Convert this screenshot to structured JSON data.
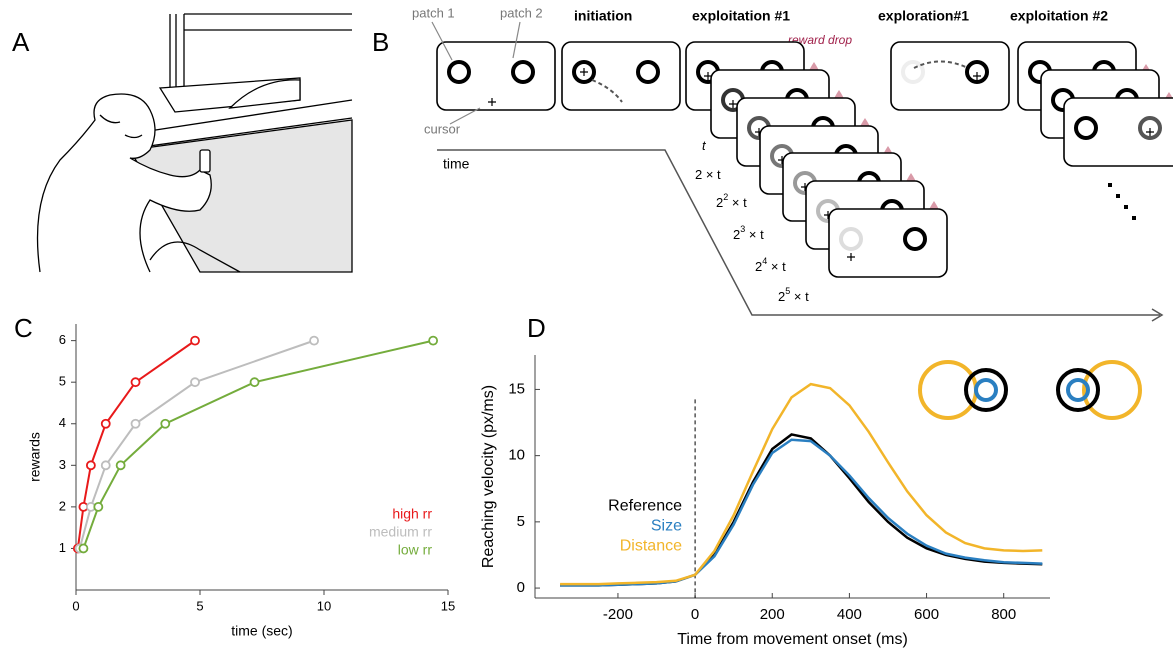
{
  "panels": [
    "A",
    "B",
    "C",
    "D"
  ],
  "diagram": {
    "patch1": "patch 1",
    "patch2": "patch 2",
    "cursor": "cursor",
    "stages": [
      "initiation",
      "exploitation #1",
      "exploration#1",
      "exploitation  #2"
    ],
    "reward": "reward drop",
    "time": "time",
    "delays": [
      {
        "base": "t"
      },
      {
        "base": "2",
        "tail": " × t"
      },
      {
        "base": "2",
        "sup": "2",
        "tail": " × t"
      },
      {
        "base": "2",
        "sup": "3",
        "tail": " × t"
      },
      {
        "base": "2",
        "sup": "4",
        "tail": " × t"
      },
      {
        "base": "2",
        "sup": "5",
        "tail": " × t"
      }
    ]
  },
  "chart_data": [
    {
      "type": "scatter-line",
      "xlabel": "time (sec)",
      "ylabel": "rewards",
      "xlim": [
        0,
        15
      ],
      "xticks": [
        0,
        5,
        10,
        15
      ],
      "ylim": [
        0,
        6.4
      ],
      "yticks": [
        1,
        2,
        3,
        4,
        5,
        6
      ],
      "legend": "lower right",
      "series": [
        {
          "name": "high rr",
          "color": "#e8191a",
          "x": [
            0.075,
            0.3,
            0.6,
            1.2,
            2.4,
            4.8
          ],
          "values": [
            1,
            2,
            3,
            4,
            5,
            6
          ]
        },
        {
          "name": "medium rr",
          "color": "#bdbdbd",
          "x": [
            0.15,
            0.6,
            1.2,
            2.4,
            4.8,
            9.6
          ],
          "values": [
            1,
            2,
            3,
            4,
            5,
            6
          ]
        },
        {
          "name": "low rr",
          "color": "#74ac3c",
          "x": [
            0.3,
            0.9,
            1.8,
            3.6,
            7.2,
            14.4
          ],
          "values": [
            1,
            2,
            3,
            4,
            5,
            6
          ]
        }
      ]
    },
    {
      "type": "line",
      "xlabel": "Time from movement onset (ms)",
      "ylabel": "Reaching velocity (px/ms)",
      "xlim": [
        -415,
        920
      ],
      "xticks": [
        -200,
        0,
        200,
        400,
        600,
        800
      ],
      "ylim": [
        -0.75,
        17.6
      ],
      "yticks": [
        0,
        5,
        10,
        15
      ],
      "vline": 0,
      "legend": "center left",
      "x": [
        -350,
        -300,
        -250,
        -200,
        -150,
        -100,
        -50,
        0,
        50,
        100,
        150,
        200,
        250,
        300,
        350,
        400,
        450,
        500,
        550,
        600,
        650,
        700,
        750,
        800,
        850,
        900
      ],
      "series": [
        {
          "name": "Reference",
          "color": "#000000",
          "values": [
            0.2,
            0.2,
            0.2,
            0.25,
            0.3,
            0.35,
            0.5,
            1.0,
            2.5,
            5.0,
            8.0,
            10.5,
            11.6,
            11.3,
            10.0,
            8.3,
            6.5,
            5.0,
            3.8,
            3.0,
            2.5,
            2.2,
            2.0,
            1.9,
            1.85,
            1.8
          ]
        },
        {
          "name": "Size",
          "color": "#2a7fc1",
          "values": [
            0.2,
            0.2,
            0.2,
            0.25,
            0.3,
            0.35,
            0.5,
            1.0,
            2.4,
            4.8,
            7.8,
            10.2,
            11.2,
            11.1,
            10.0,
            8.5,
            6.8,
            5.3,
            4.1,
            3.2,
            2.6,
            2.3,
            2.1,
            1.95,
            1.9,
            1.85
          ]
        },
        {
          "name": "Distance",
          "color": "#f2b52a",
          "values": [
            0.3,
            0.3,
            0.3,
            0.35,
            0.4,
            0.45,
            0.55,
            1.0,
            2.8,
            5.5,
            8.8,
            12.0,
            14.4,
            15.4,
            15.1,
            13.8,
            11.8,
            9.5,
            7.3,
            5.5,
            4.2,
            3.4,
            3.0,
            2.85,
            2.8,
            2.85
          ]
        }
      ]
    }
  ]
}
